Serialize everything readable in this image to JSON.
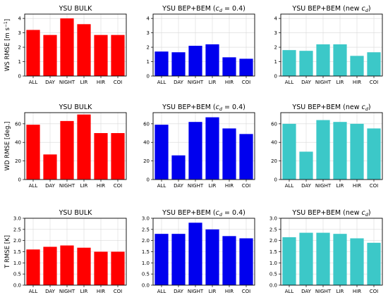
{
  "colors": {
    "red": "#ff0000",
    "blue": "#0000ee",
    "cyan": "#3cc8c8",
    "grid": "#d9d9d9"
  },
  "ylabels": [
    {
      "pre": "WS RMSE [m s",
      "sup": "−1",
      "post": "]"
    },
    {
      "pre": "WD RMSE [deg.]",
      "sup": "",
      "post": ""
    },
    {
      "pre": "T RMSE [K]",
      "sup": "",
      "post": ""
    }
  ],
  "chart_data": [
    {
      "type": "bar",
      "title": "YSU BULK",
      "title_parts": [
        "YSU BULK"
      ],
      "color": "red",
      "categories": [
        "ALL",
        "DAY",
        "NIGHT",
        "LIR",
        "HIR",
        "COI"
      ],
      "values": [
        3.2,
        2.85,
        4.0,
        3.6,
        2.85,
        2.85
      ],
      "ylim": [
        0,
        4.3
      ],
      "yticks": [
        0,
        1,
        2,
        3,
        4
      ]
    },
    {
      "type": "bar",
      "title": "YSU BEP+BEM (c_d = 0.4)",
      "title_parts": [
        "YSU BEP+BEM (",
        "c",
        "d",
        " = 0.4)"
      ],
      "color": "blue",
      "categories": [
        "ALL",
        "DAY",
        "NIGHT",
        "LIR",
        "HIR",
        "COI"
      ],
      "values": [
        1.7,
        1.65,
        2.1,
        2.2,
        1.3,
        1.2
      ],
      "ylim": [
        0,
        4.3
      ],
      "yticks": [
        0,
        1,
        2,
        3,
        4
      ]
    },
    {
      "type": "bar",
      "title": "YSU BEP+BEM (new c_d)",
      "title_parts": [
        "YSU BEP+BEM (new ",
        "c",
        "d",
        ")"
      ],
      "color": "cyan",
      "categories": [
        "ALL",
        "DAY",
        "NIGHT",
        "LIR",
        "HIR",
        "COI"
      ],
      "values": [
        1.8,
        1.75,
        2.2,
        2.2,
        1.4,
        1.65
      ],
      "ylim": [
        0,
        4.3
      ],
      "yticks": [
        0,
        1,
        2,
        3,
        4
      ]
    },
    {
      "type": "bar",
      "title": "YSU BULK",
      "title_parts": [
        "YSU BULK"
      ],
      "color": "red",
      "categories": [
        "ALL",
        "DAY",
        "NIGHT",
        "LIR",
        "HIR",
        "COI"
      ],
      "values": [
        59,
        27,
        63,
        70,
        50,
        50
      ],
      "ylim": [
        0,
        72
      ],
      "yticks": [
        0,
        20,
        40,
        60
      ]
    },
    {
      "type": "bar",
      "title": "YSU BEP+BEM (c_d = 0.4)",
      "title_parts": [
        "YSU BEP+BEM (",
        "c",
        "d",
        " = 0.4)"
      ],
      "color": "blue",
      "categories": [
        "ALL",
        "DAY",
        "NIGHT",
        "LIR",
        "HIR",
        "COI"
      ],
      "values": [
        59,
        26,
        62,
        67,
        55,
        49
      ],
      "ylim": [
        0,
        72
      ],
      "yticks": [
        0,
        20,
        40,
        60
      ]
    },
    {
      "type": "bar",
      "title": "YSU BEP+BEM (new c_d)",
      "title_parts": [
        "YSU BEP+BEM (new ",
        "c",
        "d",
        ")"
      ],
      "color": "cyan",
      "categories": [
        "ALL",
        "DAY",
        "NIGHT",
        "LIR",
        "HIR",
        "COI"
      ],
      "values": [
        60,
        30,
        64,
        62,
        60,
        55
      ],
      "ylim": [
        0,
        72
      ],
      "yticks": [
        0,
        20,
        40,
        60
      ]
    },
    {
      "type": "bar",
      "title": "YSU BULK",
      "title_parts": [
        "YSU BULK"
      ],
      "color": "red",
      "categories": [
        "ALL",
        "DAY",
        "NIGHT",
        "LIR",
        "HIR",
        "COI"
      ],
      "values": [
        1.6,
        1.72,
        1.78,
        1.68,
        1.5,
        1.5
      ],
      "ylim": [
        0,
        3.0
      ],
      "yticks": [
        0.0,
        0.5,
        1.0,
        1.5,
        2.0,
        2.5,
        3.0
      ]
    },
    {
      "type": "bar",
      "title": "YSU BEP+BEM (c_d = 0.4)",
      "title_parts": [
        "YSU BEP+BEM (",
        "c",
        "d",
        " = 0.4)"
      ],
      "color": "blue",
      "categories": [
        "ALL",
        "DAY",
        "NIGHT",
        "LIR",
        "HIR",
        "COI"
      ],
      "values": [
        2.3,
        2.3,
        2.8,
        2.5,
        2.2,
        2.1
      ],
      "ylim": [
        0,
        3.0
      ],
      "yticks": [
        0.0,
        0.5,
        1.0,
        1.5,
        2.0,
        2.5,
        3.0
      ]
    },
    {
      "type": "bar",
      "title": "YSU BEP+BEM (new c_d)",
      "title_parts": [
        "YSU BEP+BEM (new ",
        "c",
        "d",
        ")"
      ],
      "color": "cyan",
      "categories": [
        "ALL",
        "DAY",
        "NIGHT",
        "LIR",
        "HIR",
        "COI"
      ],
      "values": [
        2.15,
        2.35,
        2.35,
        2.3,
        2.1,
        1.9
      ],
      "ylim": [
        0,
        3.0
      ],
      "yticks": [
        0.0,
        0.5,
        1.0,
        1.5,
        2.0,
        2.5,
        3.0
      ]
    }
  ]
}
